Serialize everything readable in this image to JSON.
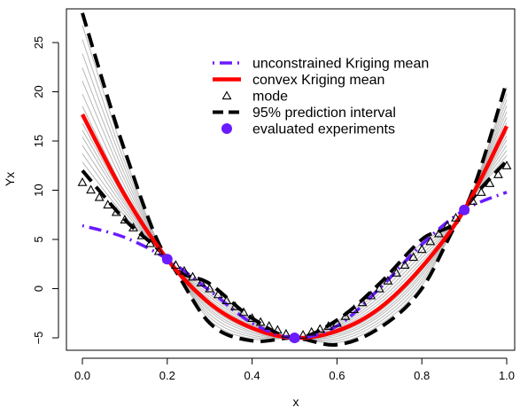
{
  "chart_data": {
    "type": "line",
    "title": "",
    "xlabel": "x",
    "ylabel": "Yx",
    "xlim": [
      0,
      1
    ],
    "ylim": [
      -5.5,
      28
    ],
    "x_ticks": [
      "0.0",
      "0.2",
      "0.4",
      "0.6",
      "0.8",
      "1.0"
    ],
    "y_ticks": [
      "−5",
      "0",
      "5",
      "10",
      "15",
      "20",
      "25"
    ],
    "colors": {
      "unconstrained": "#6a1bff",
      "convex": "#ff0000",
      "mode": "#000000",
      "interval": "#000000",
      "evaluated": "#6a1bff",
      "samples": "#b8b8b8"
    },
    "legend": [
      {
        "key": "unconstrained",
        "label": "unconstrained Kriging mean"
      },
      {
        "key": "convex",
        "label": "convex Kriging mean"
      },
      {
        "key": "mode",
        "label": "mode"
      },
      {
        "key": "interval",
        "label": "95% prediction interval"
      },
      {
        "key": "evaluated",
        "label": "evaluated experiments"
      }
    ],
    "series": [
      {
        "name": "unconstrained Kriging mean",
        "x": [
          0.0,
          0.1,
          0.2,
          0.3,
          0.4,
          0.5,
          0.6,
          0.7,
          0.8,
          0.9,
          1.0
        ],
        "y": [
          6.4,
          5.2,
          3.0,
          -0.2,
          -3.5,
          -5.0,
          -3.8,
          0.0,
          4.5,
          8.0,
          9.8
        ]
      },
      {
        "name": "convex Kriging mean",
        "x": [
          0.0,
          0.1,
          0.2,
          0.3,
          0.4,
          0.5,
          0.6,
          0.7,
          0.8,
          0.9,
          1.0
        ],
        "y": [
          17.7,
          9.5,
          3.0,
          -1.5,
          -4.0,
          -5.0,
          -4.3,
          -2.0,
          2.2,
          8.0,
          16.5
        ]
      },
      {
        "name": "mode",
        "x": [
          0.0,
          0.1,
          0.2,
          0.3,
          0.4,
          0.5,
          0.6,
          0.7,
          0.8,
          0.9,
          1.0
        ],
        "y": [
          10.8,
          7.0,
          3.0,
          0.0,
          -3.0,
          -5.0,
          -3.5,
          0.0,
          4.0,
          8.0,
          12.5
        ]
      },
      {
        "name": "95% prediction interval (upper)",
        "x": [
          0.0,
          0.1,
          0.2,
          0.3,
          0.4,
          0.5,
          0.6,
          0.7,
          0.8,
          0.9,
          1.0
        ],
        "y": [
          28.0,
          14.0,
          3.0,
          0.5,
          -3.0,
          -5.0,
          -3.2,
          0.5,
          5.0,
          8.0,
          21.0
        ]
      },
      {
        "name": "95% prediction interval (lower)",
        "x": [
          0.0,
          0.1,
          0.2,
          0.3,
          0.4,
          0.5,
          0.6,
          0.7,
          0.8,
          0.9,
          1.0
        ],
        "y": [
          12.0,
          7.0,
          3.0,
          -3.5,
          -5.3,
          -5.0,
          -5.7,
          -4.0,
          0.0,
          8.0,
          13.0
        ]
      },
      {
        "name": "evaluated experiments",
        "x": [
          0.2,
          0.5,
          0.9
        ],
        "y": [
          3.0,
          -5.0,
          8.0
        ]
      }
    ],
    "grid": false,
    "legend_position": "top-right"
  }
}
